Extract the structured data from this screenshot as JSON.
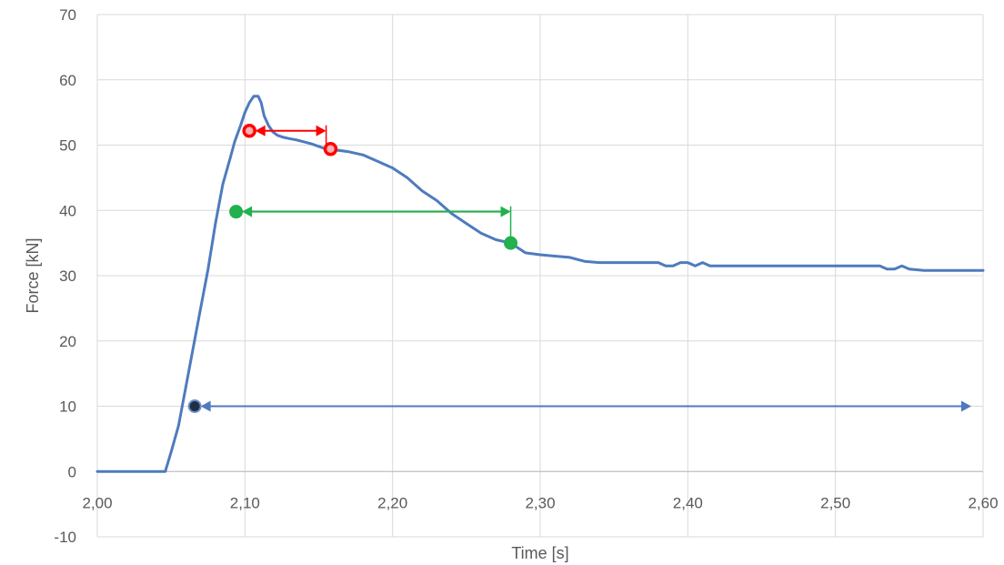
{
  "chart_data": {
    "type": "line",
    "title": "",
    "xlabel": "Time [s]",
    "ylabel": "Force [kN]",
    "xlim": [
      2.0,
      2.6
    ],
    "ylim": [
      -10,
      70
    ],
    "xticks": [
      "2,00",
      "2,10",
      "2,20",
      "2,30",
      "2,40",
      "2,50",
      "2,60"
    ],
    "yticks": [
      "-10",
      "0",
      "10",
      "20",
      "30",
      "40",
      "50",
      "60",
      "70"
    ],
    "grid": true,
    "legend": "none",
    "series_color": "#4e7bbd",
    "series": [
      {
        "x": [
          2.0,
          2.046,
          2.05,
          2.055,
          2.06,
          2.065,
          2.07,
          2.075,
          2.08,
          2.085,
          2.09,
          2.093,
          2.097,
          2.1,
          2.103,
          2.106,
          2.109,
          2.111,
          2.113,
          2.116,
          2.119,
          2.122,
          2.126,
          2.13,
          2.135,
          2.14,
          2.145,
          2.15,
          2.155,
          2.16,
          2.17,
          2.18,
          2.19,
          2.2,
          2.21,
          2.22,
          2.23,
          2.24,
          2.25,
          2.26,
          2.27,
          2.28,
          2.29,
          2.3,
          2.31,
          2.32,
          2.33,
          2.34,
          2.36,
          2.38,
          2.385,
          2.39,
          2.395,
          2.4,
          2.405,
          2.41,
          2.415,
          2.42,
          2.44,
          2.46,
          2.5,
          2.53,
          2.535,
          2.54,
          2.545,
          2.55,
          2.56,
          2.58,
          2.6
        ],
        "y": [
          0,
          0,
          3,
          7,
          13,
          19,
          25,
          31,
          38,
          44,
          48,
          50.5,
          53,
          55,
          56.5,
          57.5,
          57.5,
          56.5,
          54.5,
          53,
          52,
          51.5,
          51.2,
          51,
          50.8,
          50.5,
          50.2,
          49.8,
          49.4,
          49.3,
          49,
          48.5,
          47.5,
          46.5,
          45,
          43,
          41.5,
          39.5,
          38,
          36.5,
          35.5,
          35,
          33.5,
          33.2,
          33,
          32.8,
          32.2,
          32,
          32,
          32,
          31.5,
          31.5,
          32,
          32,
          31.5,
          32,
          31.5,
          31.5,
          31.5,
          31.5,
          31.5,
          31.5,
          31,
          31,
          31.5,
          31,
          30.8,
          30.8,
          30.8
        ]
      }
    ],
    "markers": [
      {
        "x": 2.066,
        "y": 10,
        "fill": "#1f2f4a",
        "stroke": "#6b8fc4",
        "style": "dot"
      },
      {
        "x": 2.094,
        "y": 39.8,
        "fill": "#21b14d",
        "stroke": "#21b14d",
        "style": "dot"
      },
      {
        "x": 2.28,
        "y": 35,
        "fill": "#21b14d",
        "stroke": "#21b14d",
        "style": "dot"
      },
      {
        "x": 2.103,
        "y": 52.2,
        "fill": "#f3b4b4",
        "stroke": "#ff0000",
        "style": "ring"
      },
      {
        "x": 2.158,
        "y": 49.4,
        "fill": "#f3b4b4",
        "stroke": "#ff0000",
        "style": "ring"
      }
    ],
    "arrows": [
      {
        "x1": 2.07,
        "x2": 2.592,
        "y": 10,
        "color": "#4e7bbd",
        "double": true
      },
      {
        "x1": 2.098,
        "x2": 2.28,
        "y": 39.8,
        "color": "#21b14d",
        "double": true,
        "drop_to_y": 35
      },
      {
        "x1": 2.107,
        "x2": 2.155,
        "y": 52.2,
        "color": "#ff0000",
        "double": true,
        "drop_to_y": 49.4
      }
    ]
  }
}
